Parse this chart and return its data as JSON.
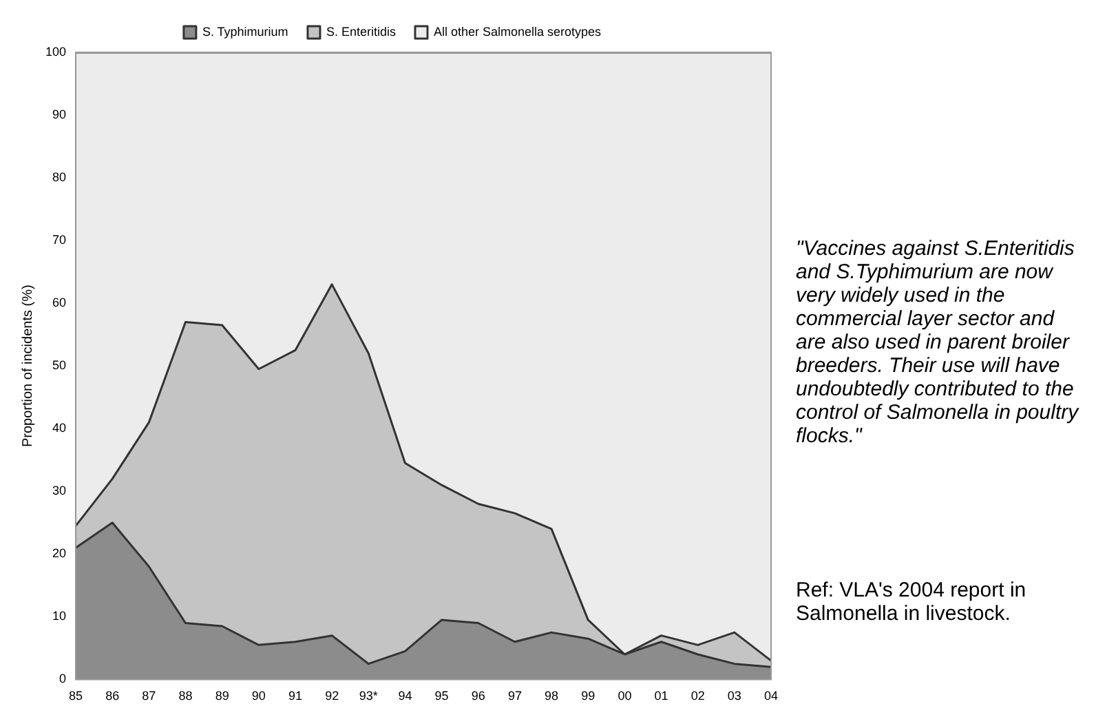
{
  "chart_data": {
    "type": "area",
    "stacked": true,
    "categories": [
      "85",
      "86",
      "87",
      "88",
      "89",
      "90",
      "91",
      "92",
      "93*",
      "94",
      "95",
      "96",
      "97",
      "98",
      "99",
      "00",
      "01",
      "02",
      "03",
      "04"
    ],
    "series": [
      {
        "name": "S. Typhimurium",
        "color": "#8c8c8c",
        "values": [
          21,
          25,
          18,
          9,
          8.5,
          5.5,
          6,
          7,
          2.5,
          4.5,
          9.5,
          9,
          6,
          7.5,
          6.5,
          4,
          6,
          4,
          2.5,
          2
        ]
      },
      {
        "name": "S. Enteritidis",
        "color": "#c4c4c4",
        "values": [
          3.5,
          7,
          23,
          48,
          48,
          44,
          46.5,
          56,
          49.5,
          30,
          21.5,
          19,
          20.5,
          16.5,
          3,
          0,
          1,
          1.5,
          5,
          1
        ]
      },
      {
        "name": "All other Salmonella serotypes",
        "color": "#ececec",
        "values": [
          75.5,
          68,
          59,
          43,
          43.5,
          50.5,
          47.5,
          37,
          48,
          65.5,
          69,
          72,
          73.5,
          76,
          90.5,
          96,
          93,
          94.5,
          92.5,
          97
        ]
      }
    ],
    "ylabel": "Proportion of incidents (%)",
    "ylim": [
      0,
      100
    ],
    "yticks": [
      0,
      10,
      20,
      30,
      40,
      50,
      60,
      70,
      80,
      90,
      100
    ],
    "legend": "top",
    "annotations": [
      "\"Vaccines against S.Enteritidis  and S.Typhimurium  are now very widely used in the commercial layer sector and are also used in parent broiler breeders. Their use will have undoubtedly contributed to the control of Salmonella in poultry flocks.\"",
      "Ref: VLA's 2004 report in Salmonella in livestock."
    ]
  }
}
